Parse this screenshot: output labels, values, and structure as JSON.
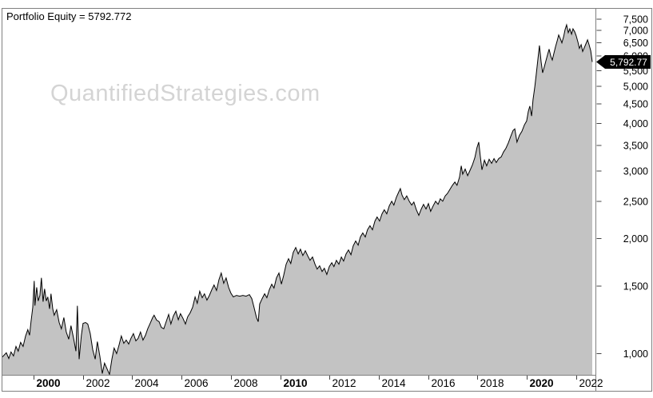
{
  "title": "Portfolio Equity = 5792.772",
  "watermark": "QuantifiedStrategies.com",
  "marker": {
    "label": "5,792.77",
    "value": 5792.77,
    "bg": "#000000",
    "fg": "#ffffff"
  },
  "colors": {
    "frame": "#808080",
    "tick": "#444444",
    "label": "#000000",
    "background": "#ffffff",
    "watermark": "#d4d4d4"
  },
  "chart_data": {
    "type": "area",
    "title": "Portfolio Equity",
    "xlabel": "",
    "ylabel": "",
    "x_axis": {
      "range": [
        1998.74,
        2022.78
      ],
      "ticks": [
        {
          "year": 2000,
          "label": "2000",
          "bold": true
        },
        {
          "year": 2002,
          "label": "2002",
          "bold": false
        },
        {
          "year": 2004,
          "label": "2004",
          "bold": false
        },
        {
          "year": 2006,
          "label": "2006",
          "bold": false
        },
        {
          "year": 2008,
          "label": "2008",
          "bold": false
        },
        {
          "year": 2010,
          "label": "2010",
          "bold": true
        },
        {
          "year": 2012,
          "label": "2012",
          "bold": false
        },
        {
          "year": 2014,
          "label": "2014",
          "bold": false
        },
        {
          "year": 2016,
          "label": "2016",
          "bold": false
        },
        {
          "year": 2018,
          "label": "2018",
          "bold": false
        },
        {
          "year": 2020,
          "label": "2020",
          "bold": true
        },
        {
          "year": 2022,
          "label": "2022",
          "bold": false
        }
      ]
    },
    "y_axis": {
      "scale": "log",
      "range": [
        880,
        7980
      ],
      "grid": false,
      "ticks": [
        {
          "value": 7500,
          "label": "7,500"
        },
        {
          "value": 7000,
          "label": "7,000"
        },
        {
          "value": 6500,
          "label": "6,500"
        },
        {
          "value": 6000,
          "label": "6,000"
        },
        {
          "value": 5500,
          "label": "5,500"
        },
        {
          "value": 5000,
          "label": "5,000"
        },
        {
          "value": 4500,
          "label": "4,500"
        },
        {
          "value": 4000,
          "label": "4,000"
        },
        {
          "value": 3500,
          "label": "3,500"
        },
        {
          "value": 3000,
          "label": "3,000"
        },
        {
          "value": 2500,
          "label": "2,500"
        },
        {
          "value": 2000,
          "label": "2,000"
        },
        {
          "value": 1500,
          "label": "1,500"
        },
        {
          "value": 1000,
          "label": "1,000"
        }
      ]
    },
    "last_value": 5792.772,
    "series": [
      {
        "name": "Portfolio Equity",
        "line_color": "#000000",
        "fill_color": "#c3c3c3",
        "points": [
          [
            1998.74,
            980
          ],
          [
            1998.9,
            1005
          ],
          [
            1999.0,
            971
          ],
          [
            1999.09,
            1010
          ],
          [
            1999.19,
            986
          ],
          [
            1999.29,
            1044
          ],
          [
            1999.38,
            1015
          ],
          [
            1999.48,
            1070
          ],
          [
            1999.58,
            1044
          ],
          [
            1999.68,
            1112
          ],
          [
            1999.77,
            1155
          ],
          [
            1999.84,
            1117
          ],
          [
            1999.9,
            1212
          ],
          [
            1999.97,
            1322
          ],
          [
            2000.03,
            1549
          ],
          [
            2000.06,
            1335
          ],
          [
            2000.13,
            1491
          ],
          [
            2000.19,
            1373
          ],
          [
            2000.26,
            1420
          ],
          [
            2000.32,
            1578
          ],
          [
            2000.39,
            1367
          ],
          [
            2000.45,
            1477
          ],
          [
            2000.52,
            1373
          ],
          [
            2000.58,
            1407
          ],
          [
            2000.65,
            1310
          ],
          [
            2000.71,
            1434
          ],
          [
            2000.78,
            1310
          ],
          [
            2000.84,
            1260
          ],
          [
            2000.94,
            1303
          ],
          [
            2001.04,
            1206
          ],
          [
            2001.13,
            1161
          ],
          [
            2001.23,
            1243
          ],
          [
            2001.33,
            1139
          ],
          [
            2001.43,
            1091
          ],
          [
            2001.52,
            1183
          ],
          [
            2001.62,
            1101
          ],
          [
            2001.72,
            1015
          ],
          [
            2001.78,
            1334
          ],
          [
            2001.85,
            967
          ],
          [
            2001.94,
            1117
          ],
          [
            2002.01,
            1200
          ],
          [
            2002.11,
            1206
          ],
          [
            2002.2,
            1195
          ],
          [
            2002.3,
            1128
          ],
          [
            2002.4,
            1024
          ],
          [
            2002.5,
            967
          ],
          [
            2002.59,
            1075
          ],
          [
            2002.69,
            986
          ],
          [
            2002.79,
            887
          ],
          [
            2002.88,
            944
          ],
          [
            2002.98,
            913
          ],
          [
            2003.08,
            882
          ],
          [
            2003.18,
            967
          ],
          [
            2003.27,
            1034
          ],
          [
            2003.37,
            1000
          ],
          [
            2003.47,
            1054
          ],
          [
            2003.56,
            1112
          ],
          [
            2003.66,
            1064
          ],
          [
            2003.76,
            1085
          ],
          [
            2003.86,
            1059
          ],
          [
            2003.95,
            1096
          ],
          [
            2004.05,
            1128
          ],
          [
            2004.15,
            1080
          ],
          [
            2004.24,
            1096
          ],
          [
            2004.34,
            1139
          ],
          [
            2004.44,
            1085
          ],
          [
            2004.54,
            1117
          ],
          [
            2004.63,
            1161
          ],
          [
            2004.73,
            1200
          ],
          [
            2004.83,
            1242
          ],
          [
            2004.89,
            1260
          ],
          [
            2004.99,
            1224
          ],
          [
            2005.09,
            1212
          ],
          [
            2005.18,
            1172
          ],
          [
            2005.28,
            1161
          ],
          [
            2005.38,
            1212
          ],
          [
            2005.48,
            1266
          ],
          [
            2005.57,
            1195
          ],
          [
            2005.67,
            1254
          ],
          [
            2005.77,
            1291
          ],
          [
            2005.87,
            1226
          ],
          [
            2005.96,
            1272
          ],
          [
            2006.06,
            1237
          ],
          [
            2006.16,
            1195
          ],
          [
            2006.25,
            1248
          ],
          [
            2006.35,
            1278
          ],
          [
            2006.45,
            1322
          ],
          [
            2006.55,
            1407
          ],
          [
            2006.64,
            1354
          ],
          [
            2006.74,
            1456
          ],
          [
            2006.84,
            1400
          ],
          [
            2006.93,
            1434
          ],
          [
            2007.03,
            1380
          ],
          [
            2007.13,
            1420
          ],
          [
            2007.23,
            1470
          ],
          [
            2007.32,
            1512
          ],
          [
            2007.42,
            1463
          ],
          [
            2007.52,
            1563
          ],
          [
            2007.61,
            1625
          ],
          [
            2007.71,
            1527
          ],
          [
            2007.81,
            1578
          ],
          [
            2007.91,
            1491
          ],
          [
            2008.0,
            1441
          ],
          [
            2008.1,
            1407
          ],
          [
            2008.23,
            1420
          ],
          [
            2008.36,
            1413
          ],
          [
            2008.49,
            1420
          ],
          [
            2008.62,
            1413
          ],
          [
            2008.75,
            1427
          ],
          [
            2008.85,
            1393
          ],
          [
            2008.94,
            1322
          ],
          [
            2009.04,
            1243
          ],
          [
            2009.11,
            1212
          ],
          [
            2009.17,
            1348
          ],
          [
            2009.27,
            1393
          ],
          [
            2009.37,
            1434
          ],
          [
            2009.46,
            1400
          ],
          [
            2009.56,
            1470
          ],
          [
            2009.66,
            1519
          ],
          [
            2009.75,
            1484
          ],
          [
            2009.85,
            1578
          ],
          [
            2009.95,
            1625
          ],
          [
            2010.05,
            1520
          ],
          [
            2010.14,
            1602
          ],
          [
            2010.24,
            1713
          ],
          [
            2010.34,
            1771
          ],
          [
            2010.43,
            1721
          ],
          [
            2010.53,
            1840
          ],
          [
            2010.63,
            1895
          ],
          [
            2010.73,
            1823
          ],
          [
            2010.82,
            1876
          ],
          [
            2010.92,
            1806
          ],
          [
            2011.02,
            1858
          ],
          [
            2011.11,
            1806
          ],
          [
            2011.21,
            1754
          ],
          [
            2011.31,
            1789
          ],
          [
            2011.41,
            1713
          ],
          [
            2011.5,
            1664
          ],
          [
            2011.6,
            1697
          ],
          [
            2011.7,
            1640
          ],
          [
            2011.79,
            1672
          ],
          [
            2011.89,
            1611
          ],
          [
            2011.99,
            1689
          ],
          [
            2012.09,
            1729
          ],
          [
            2012.18,
            1689
          ],
          [
            2012.28,
            1754
          ],
          [
            2012.38,
            1713
          ],
          [
            2012.48,
            1789
          ],
          [
            2012.57,
            1746
          ],
          [
            2012.67,
            1823
          ],
          [
            2012.77,
            1867
          ],
          [
            2012.87,
            1814
          ],
          [
            2012.96,
            1913
          ],
          [
            2013.06,
            1971
          ],
          [
            2013.16,
            1922
          ],
          [
            2013.25,
            2019
          ],
          [
            2013.35,
            2068
          ],
          [
            2013.45,
            2019
          ],
          [
            2013.54,
            2108
          ],
          [
            2013.64,
            2160
          ],
          [
            2013.74,
            2108
          ],
          [
            2013.84,
            2222
          ],
          [
            2013.93,
            2277
          ],
          [
            2014.03,
            2222
          ],
          [
            2014.13,
            2321
          ],
          [
            2014.22,
            2378
          ],
          [
            2014.32,
            2321
          ],
          [
            2014.42,
            2434
          ],
          [
            2014.52,
            2504
          ],
          [
            2014.61,
            2446
          ],
          [
            2014.71,
            2563
          ],
          [
            2014.81,
            2650
          ],
          [
            2014.87,
            2701
          ],
          [
            2014.94,
            2598
          ],
          [
            2015.03,
            2528
          ],
          [
            2015.13,
            2586
          ],
          [
            2015.23,
            2504
          ],
          [
            2015.33,
            2446
          ],
          [
            2015.42,
            2492
          ],
          [
            2015.52,
            2378
          ],
          [
            2015.62,
            2300
          ],
          [
            2015.72,
            2390
          ],
          [
            2015.81,
            2457
          ],
          [
            2015.91,
            2390
          ],
          [
            2016.01,
            2469
          ],
          [
            2016.1,
            2356
          ],
          [
            2016.2,
            2434
          ],
          [
            2016.3,
            2504
          ],
          [
            2016.4,
            2457
          ],
          [
            2016.49,
            2540
          ],
          [
            2016.59,
            2504
          ],
          [
            2016.69,
            2586
          ],
          [
            2016.78,
            2623
          ],
          [
            2016.88,
            2688
          ],
          [
            2016.98,
            2755
          ],
          [
            2017.08,
            2810
          ],
          [
            2017.17,
            2755
          ],
          [
            2017.27,
            2892
          ],
          [
            2017.34,
            3099
          ],
          [
            2017.4,
            2948
          ],
          [
            2017.5,
            3040
          ],
          [
            2017.6,
            2920
          ],
          [
            2017.69,
            3010
          ],
          [
            2017.79,
            3114
          ],
          [
            2017.89,
            3254
          ],
          [
            2017.98,
            3460
          ],
          [
            2018.05,
            3575
          ],
          [
            2018.11,
            3286
          ],
          [
            2018.18,
            3025
          ],
          [
            2018.28,
            3207
          ],
          [
            2018.37,
            3099
          ],
          [
            2018.47,
            3223
          ],
          [
            2018.57,
            3145
          ],
          [
            2018.67,
            3238
          ],
          [
            2018.76,
            3160
          ],
          [
            2018.86,
            3238
          ],
          [
            2018.96,
            3270
          ],
          [
            2019.05,
            3367
          ],
          [
            2019.15,
            3445
          ],
          [
            2019.25,
            3558
          ],
          [
            2019.34,
            3690
          ],
          [
            2019.44,
            3834
          ],
          [
            2019.51,
            3870
          ],
          [
            2019.6,
            3575
          ],
          [
            2019.7,
            3725
          ],
          [
            2019.8,
            3815
          ],
          [
            2019.9,
            3965
          ],
          [
            2019.99,
            4060
          ],
          [
            2020.06,
            4300
          ],
          [
            2020.12,
            4442
          ],
          [
            2020.19,
            4183
          ],
          [
            2020.25,
            4616
          ],
          [
            2020.32,
            4984
          ],
          [
            2020.38,
            5373
          ],
          [
            2020.45,
            5915
          ],
          [
            2020.51,
            6398
          ],
          [
            2020.58,
            5780
          ],
          [
            2020.64,
            5426
          ],
          [
            2020.71,
            5632
          ],
          [
            2020.77,
            5834
          ],
          [
            2020.84,
            6054
          ],
          [
            2020.9,
            6258
          ],
          [
            2020.97,
            5998
          ],
          [
            2021.03,
            5862
          ],
          [
            2021.1,
            6112
          ],
          [
            2021.16,
            6345
          ],
          [
            2021.23,
            6591
          ],
          [
            2021.29,
            6814
          ],
          [
            2021.36,
            6653
          ],
          [
            2021.42,
            6500
          ],
          [
            2021.49,
            6750
          ],
          [
            2021.55,
            7040
          ],
          [
            2021.61,
            7245
          ],
          [
            2021.68,
            6911
          ],
          [
            2021.74,
            7073
          ],
          [
            2021.81,
            6847
          ],
          [
            2021.87,
            7073
          ],
          [
            2021.94,
            6944
          ],
          [
            2022.0,
            6781
          ],
          [
            2022.07,
            6530
          ],
          [
            2022.13,
            6287
          ],
          [
            2022.2,
            6428
          ],
          [
            2022.26,
            6170
          ],
          [
            2022.33,
            6316
          ],
          [
            2022.39,
            6457
          ],
          [
            2022.46,
            6622
          ],
          [
            2022.52,
            6428
          ],
          [
            2022.59,
            6199
          ],
          [
            2022.65,
            5792.77
          ]
        ]
      }
    ]
  }
}
